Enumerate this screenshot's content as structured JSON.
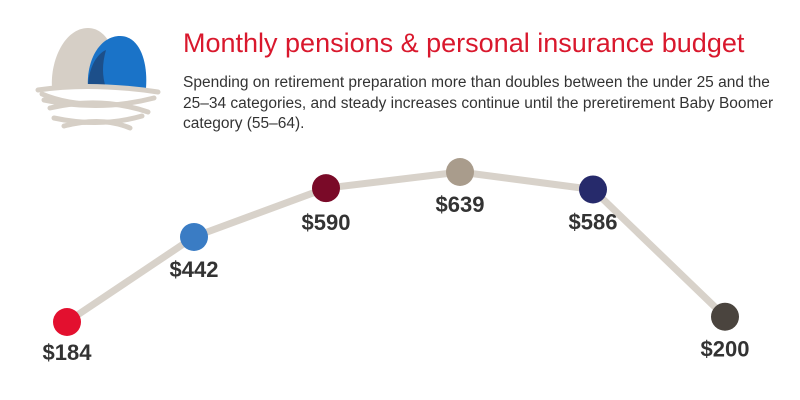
{
  "header": {
    "title": "Monthly pensions & personal insurance budget",
    "subtitle": "Spending on retirement preparation more than doubles between the under 25 and the 25–34 categories, and steady increases continue until the preretirement Baby Boomer category (55–64)."
  },
  "logo": {
    "icon": "nest-eggs-icon",
    "colors": [
      "#d6cfc6",
      "#1a73c8",
      "#1c4f8a"
    ]
  },
  "colors": {
    "title": "#d9182d",
    "line": "#d8d2ca"
  },
  "chart_data": {
    "type": "line",
    "title": "Monthly pensions & personal insurance budget",
    "xlabel": "",
    "ylabel": "",
    "categories": [
      "",
      "",
      "",
      "",
      "",
      ""
    ],
    "values": [
      184,
      442,
      590,
      639,
      586,
      200
    ],
    "labels": [
      "$184",
      "$442",
      "$590",
      "$639",
      "$586",
      "$200"
    ],
    "point_colors": [
      "#e3102f",
      "#3a7cc4",
      "#7a0a28",
      "#a99c8c",
      "#262a6b",
      "#4a443e"
    ],
    "ylim": [
      184,
      639
    ],
    "grid": false,
    "legend": "none"
  }
}
